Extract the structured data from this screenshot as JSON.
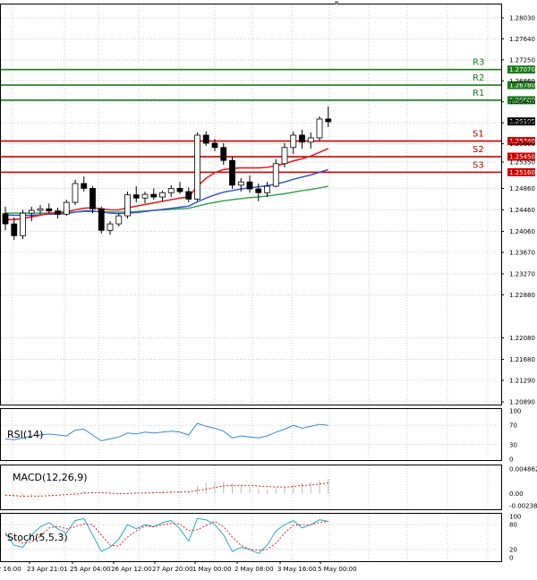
{
  "chart_data": {
    "type": "candlestick",
    "price_axis": {
      "ticks": [
        "1.28030",
        "1.27640",
        "1.27250",
        "1.26860",
        "1.26470",
        "1.26080",
        "1.25690",
        "1.25350",
        "1.24860",
        "1.24460",
        "1.24060",
        "1.23670",
        "1.23270",
        "1.22880",
        "1.22080",
        "1.21680",
        "1.21290",
        "1.20890"
      ],
      "tick_values": [
        1.2803,
        1.2764,
        1.2725,
        1.2686,
        1.2647,
        1.2608,
        1.2569,
        1.2535,
        1.2486,
        1.2446,
        1.2406,
        1.2367,
        1.2327,
        1.2288,
        1.2208,
        1.2168,
        1.2129,
        1.2089
      ],
      "range": [
        1.2079,
        1.285
      ]
    },
    "time_axis": {
      "ticks": [
        "pr 16:00",
        "23 Apr 21:01",
        "25 Apr 04:00",
        "26 Apr 12:00",
        "27 Apr 20:00",
        "1 May 00:00",
        "2 May 08:00",
        "3 May 16:00",
        "5 May 00:00"
      ]
    },
    "levels": [
      {
        "name": "R3",
        "value": "1.27070",
        "v": 1.2707,
        "color": "#1a7a1a"
      },
      {
        "name": "R2",
        "value": "1.26780",
        "v": 1.2678,
        "color": "#1a7a1a"
      },
      {
        "name": "R1",
        "value": "1.26500",
        "v": 1.265,
        "color": "#1a7a1a"
      },
      {
        "name": "S1",
        "value": "1.25740",
        "v": 1.2574,
        "color": "#cc0000"
      },
      {
        "name": "S2",
        "value": "1.25450",
        "v": 1.2545,
        "color": "#cc0000"
      },
      {
        "name": "S3",
        "value": "1.25160",
        "v": 1.2516,
        "color": "#cc0000"
      }
    ],
    "current_price": {
      "value": "1.26105",
      "v": 1.26105
    },
    "candles": [
      [
        1.2439,
        1.2452,
        1.2408,
        1.242
      ],
      [
        1.242,
        1.2432,
        1.239,
        1.2398
      ],
      [
        1.2398,
        1.2446,
        1.2392,
        1.244
      ],
      [
        1.244,
        1.2452,
        1.2425,
        1.2445
      ],
      [
        1.2445,
        1.2455,
        1.2438,
        1.2448
      ],
      [
        1.2448,
        1.2458,
        1.244,
        1.2444
      ],
      [
        1.2444,
        1.245,
        1.243,
        1.2438
      ],
      [
        1.2438,
        1.2465,
        1.2435,
        1.246
      ],
      [
        1.246,
        1.2502,
        1.2455,
        1.2495
      ],
      [
        1.2495,
        1.2508,
        1.248,
        1.2486
      ],
      [
        1.2486,
        1.249,
        1.244,
        1.2448
      ],
      [
        1.2448,
        1.2452,
        1.2402,
        1.2408
      ],
      [
        1.2408,
        1.2425,
        1.24,
        1.242
      ],
      [
        1.242,
        1.244,
        1.2415,
        1.2435
      ],
      [
        1.2435,
        1.248,
        1.243,
        1.2474
      ],
      [
        1.2474,
        1.249,
        1.246,
        1.2468
      ],
      [
        1.2468,
        1.248,
        1.2458,
        1.2475
      ],
      [
        1.2475,
        1.2486,
        1.2465,
        1.247
      ],
      [
        1.247,
        1.2482,
        1.2462,
        1.2478
      ],
      [
        1.2478,
        1.2492,
        1.247,
        1.2486
      ],
      [
        1.2486,
        1.2498,
        1.2476,
        1.248
      ],
      [
        1.248,
        1.2488,
        1.246,
        1.2466
      ],
      [
        1.2466,
        1.259,
        1.2462,
        1.2585
      ],
      [
        1.2585,
        1.2592,
        1.2565,
        1.257
      ],
      [
        1.257,
        1.2578,
        1.2555,
        1.2562
      ],
      [
        1.2562,
        1.257,
        1.253,
        1.2538
      ],
      [
        1.2538,
        1.2545,
        1.2485,
        1.2492
      ],
      [
        1.2492,
        1.2505,
        1.248,
        1.2498
      ],
      [
        1.2498,
        1.251,
        1.2478,
        1.2485
      ],
      [
        1.2485,
        1.2495,
        1.2462,
        1.2478
      ],
      [
        1.2478,
        1.2498,
        1.247,
        1.249
      ],
      [
        1.249,
        1.254,
        1.2488,
        1.2532
      ],
      [
        1.2532,
        1.257,
        1.2525,
        1.2562
      ],
      [
        1.2562,
        1.2592,
        1.255,
        1.2585
      ],
      [
        1.2585,
        1.2595,
        1.256,
        1.2572
      ],
      [
        1.2572,
        1.259,
        1.256,
        1.258
      ],
      [
        1.258,
        1.262,
        1.2575,
        1.2615
      ],
      [
        1.2615,
        1.2638,
        1.26,
        1.261
      ]
    ],
    "ma_red": [
      1.2428,
      1.2428,
      1.243,
      1.2433,
      1.2436,
      1.244,
      1.2441,
      1.2443,
      1.2446,
      1.2449,
      1.245,
      1.2448,
      1.2446,
      1.2446,
      1.245,
      1.2453,
      1.2456,
      1.2459,
      1.2462,
      1.2465,
      1.2468,
      1.247,
      1.249,
      1.2505,
      1.2515,
      1.2521,
      1.2523,
      1.2524,
      1.2524,
      1.2524,
      1.2525,
      1.2528,
      1.2532,
      1.2537,
      1.2541,
      1.2546,
      1.2553,
      1.256
    ],
    "ma_blue": [
      1.2437,
      1.2436,
      1.2436,
      1.2436,
      1.2437,
      1.2438,
      1.2438,
      1.2439,
      1.2442,
      1.2444,
      1.2444,
      1.2442,
      1.244,
      1.2439,
      1.244,
      1.2441,
      1.2443,
      1.2445,
      1.2447,
      1.2449,
      1.2451,
      1.2453,
      1.2461,
      1.2468,
      1.2474,
      1.2479,
      1.2482,
      1.2485,
      1.2487,
      1.2489,
      1.2491,
      1.2494,
      1.2498,
      1.2503,
      1.2507,
      1.2511,
      1.2516,
      1.2521
    ],
    "ma_green": [
      1.244,
      1.244,
      1.244,
      1.244,
      1.244,
      1.244,
      1.244,
      1.2441,
      1.2442,
      1.2443,
      1.2443,
      1.2443,
      1.2442,
      1.2442,
      1.2442,
      1.2443,
      1.2444,
      1.2445,
      1.2446,
      1.2447,
      1.2448,
      1.2449,
      1.2453,
      1.2457,
      1.246,
      1.2463,
      1.2465,
      1.2467,
      1.2469,
      1.247,
      1.2472,
      1.2474,
      1.2476,
      1.2479,
      1.2482,
      1.2484,
      1.2487,
      1.249
    ],
    "rsi": {
      "label": "RSI(14)",
      "ticks": [
        "100",
        "70",
        "30",
        "0"
      ],
      "tick_values": [
        100,
        70,
        30,
        0
      ],
      "values": [
        42,
        40,
        44,
        48,
        50,
        52,
        50,
        48,
        60,
        62,
        50,
        38,
        42,
        46,
        54,
        52,
        56,
        54,
        56,
        58,
        56,
        50,
        74,
        68,
        64,
        58,
        44,
        48,
        46,
        44,
        48,
        56,
        62,
        70,
        64,
        68,
        72,
        70
      ]
    },
    "macd": {
      "label": "MACD(12,26,9)",
      "ticks": [
        "0.004862",
        "0.00",
        "-0.002389"
      ],
      "tick_values": [
        0.004862,
        0,
        -0.002389
      ],
      "hist": [
        -0.0004,
        -0.0006,
        -0.0006,
        -0.0005,
        -0.0003,
        -0.0002,
        -0.0001,
        0.0,
        0.0003,
        0.0005,
        0.0004,
        0.0001,
        -0.0002,
        -0.0002,
        0.0001,
        0.0002,
        0.0003,
        0.0003,
        0.0004,
        0.0005,
        0.0005,
        0.0004,
        0.0015,
        0.0021,
        0.0024,
        0.0024,
        0.002,
        0.0017,
        0.0014,
        0.001,
        0.0008,
        0.001,
        0.0014,
        0.0019,
        0.0021,
        0.0023,
        0.0027,
        0.0029
      ],
      "signal": [
        -0.0003,
        -0.0004,
        -0.0005,
        -0.0005,
        -0.0005,
        -0.0004,
        -0.0003,
        -0.0002,
        -0.0001,
        0.0001,
        0.0002,
        0.0002,
        0.0001,
        0.0,
        0.0,
        0.0001,
        0.0001,
        0.0002,
        0.0002,
        0.0003,
        0.0003,
        0.0004,
        0.0006,
        0.0009,
        0.0012,
        0.0015,
        0.0016,
        0.0016,
        0.0016,
        0.0015,
        0.0014,
        0.0013,
        0.0013,
        0.0014,
        0.0016,
        0.0017,
        0.0019,
        0.0021
      ]
    },
    "stoch": {
      "label": "Stoch(5,5,3)",
      "ticks": [
        "100",
        "80",
        "20",
        "0"
      ],
      "tick_values": [
        100,
        80,
        20,
        0
      ],
      "k": [
        60,
        30,
        25,
        55,
        75,
        85,
        70,
        60,
        90,
        95,
        55,
        15,
        25,
        45,
        80,
        70,
        80,
        75,
        85,
        90,
        70,
        40,
        95,
        92,
        80,
        55,
        15,
        25,
        20,
        10,
        30,
        65,
        80,
        90,
        72,
        80,
        92,
        88
      ],
      "d": [
        55,
        45,
        35,
        38,
        52,
        72,
        76,
        70,
        75,
        82,
        80,
        55,
        30,
        28,
        50,
        65,
        77,
        75,
        80,
        83,
        82,
        65,
        68,
        78,
        88,
        75,
        50,
        30,
        20,
        18,
        20,
        35,
        60,
        78,
        80,
        80,
        85,
        88
      ]
    }
  }
}
